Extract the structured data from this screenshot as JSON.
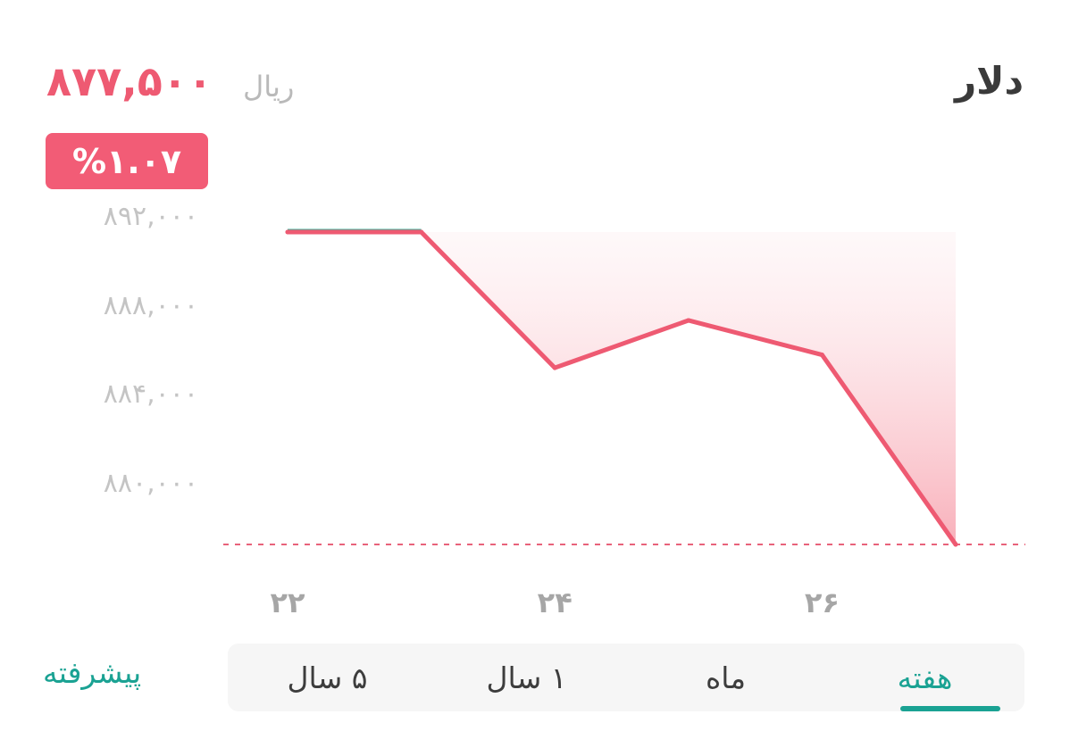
{
  "header": {
    "title": "دلار",
    "price": "۸۷۷,۵۰۰",
    "currency": "ریال",
    "change": "%۱.۰۷"
  },
  "colors": {
    "line": "#ee5a72",
    "fill": "#f7a2ae",
    "accent": "#1aa293",
    "baseline": "#e8627a",
    "start_segment": "#3fae95"
  },
  "chart_data": {
    "type": "area",
    "x": [
      22,
      23,
      24,
      25,
      26,
      27
    ],
    "values": [
      892000,
      892000,
      885700,
      887900,
      886300,
      877500
    ],
    "y_ticks": [
      880000,
      884000,
      888000,
      892000
    ],
    "y_tick_labels": [
      "۸۸۰,۰۰۰",
      "۸۸۴,۰۰۰",
      "۸۸۸,۰۰۰",
      "۸۹۲,۰۰۰"
    ],
    "x_ticks": [
      22,
      24,
      26
    ],
    "x_tick_labels": [
      "۲۲",
      "۲۴",
      "۲۶"
    ],
    "xlim": [
      22,
      27
    ],
    "baseline_value": 877500,
    "grid": false
  },
  "range_tabs": [
    {
      "label": "هفته",
      "active": true
    },
    {
      "label": "ماه",
      "active": false
    },
    {
      "label": "۱ سال",
      "active": false
    },
    {
      "label": "۵ سال",
      "active": false
    }
  ],
  "advanced_label": "پیشرفته"
}
